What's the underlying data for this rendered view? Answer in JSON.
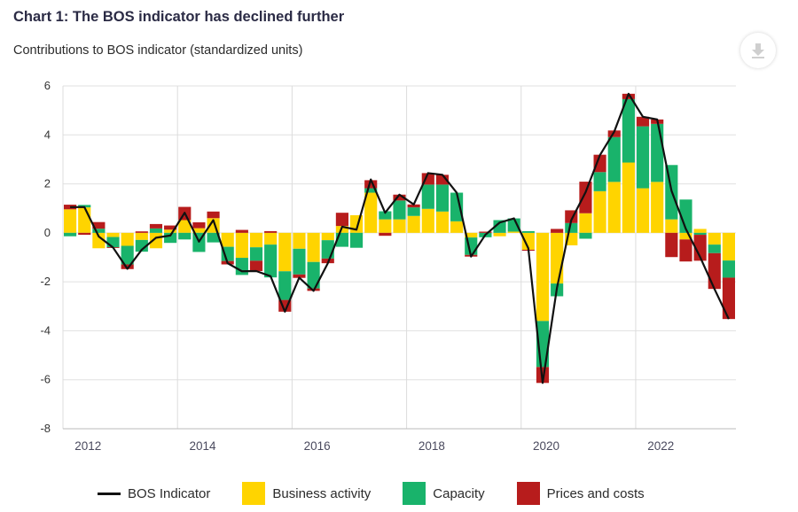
{
  "title": "Chart 1: The BOS indicator has declined further",
  "subtitle": "Contributions to BOS indicator (standardized units)",
  "download_icon": "download-icon",
  "chart_data": {
    "type": "bar",
    "stacked": true,
    "x_start": "2012Q1",
    "frequency": "quarterly",
    "x_ticks": [
      "2012",
      "2014",
      "2016",
      "2018",
      "2020",
      "2022"
    ],
    "y_ticks": [
      6,
      4,
      2,
      0,
      -2,
      -4,
      -6,
      -8
    ],
    "ylim": [
      -8,
      6
    ],
    "grid": true,
    "legend_position": "bottom",
    "colors": {
      "bos": "#111111",
      "business": "#FFD400",
      "capacity": "#19B36B",
      "prices": "#B71C1C"
    },
    "series": [
      {
        "name": "Business activity",
        "key": "business",
        "values": [
          0.96,
          1.04,
          -0.63,
          -0.17,
          -0.53,
          -0.29,
          -0.63,
          0.13,
          0.52,
          0.19,
          0.6,
          -0.57,
          -1.02,
          -0.59,
          -0.48,
          -1.57,
          -0.65,
          -1.19,
          -0.3,
          0.28,
          0.72,
          1.64,
          0.55,
          0.55,
          0.69,
          0.98,
          0.87,
          0.47,
          -0.19,
          0,
          -0.14,
          0.05,
          -0.69,
          -3.6,
          -2.07,
          -0.51,
          0.8,
          1.7,
          2.08,
          2.87,
          1.82,
          2.08,
          0.55,
          -0.27,
          0.16,
          -0.48,
          -1.13
        ]
      },
      {
        "name": "Capacity",
        "key": "capacity",
        "values": [
          -0.14,
          0.1,
          0.17,
          -0.42,
          -0.76,
          -0.48,
          0.18,
          -0.41,
          -0.27,
          -0.78,
          -0.39,
          -0.58,
          -0.7,
          -0.55,
          -1.34,
          -1.17,
          -1.05,
          -1.08,
          -0.75,
          -0.57,
          -0.61,
          0.18,
          0.33,
          0.77,
          0.35,
          0.99,
          1.1,
          1.17,
          -0.71,
          -0.18,
          0.52,
          0.54,
          0.07,
          -1.88,
          -0.52,
          0.4,
          -0.24,
          0.78,
          1.83,
          2.59,
          2.53,
          2.37,
          2.22,
          1.36,
          -0.08,
          -0.35,
          -0.7
        ]
      },
      {
        "name": "Prices and costs",
        "key": "prices",
        "values": [
          0.19,
          -0.08,
          0.27,
          -0.03,
          -0.19,
          0.06,
          0.18,
          0.17,
          0.54,
          0.24,
          0.27,
          -0.14,
          0.12,
          -0.42,
          0.07,
          -0.48,
          -0.14,
          -0.1,
          -0.19,
          0.54,
          0,
          0.33,
          -0.12,
          0.24,
          0.12,
          0.47,
          0.4,
          0,
          -0.07,
          0.05,
          0,
          0,
          -0.04,
          -0.65,
          0.16,
          0.52,
          1.29,
          0.71,
          0.27,
          0.22,
          0.39,
          0.18,
          -0.99,
          -0.9,
          -1.06,
          -1.46,
          -1.69
        ]
      },
      {
        "name": "BOS Indicator",
        "key": "bos",
        "type": "line",
        "values": [
          1.05,
          1.05,
          -0.15,
          -0.6,
          -1.47,
          -0.69,
          -0.2,
          -0.11,
          0.82,
          -0.36,
          0.52,
          -1.24,
          -1.57,
          -1.56,
          -1.77,
          -3.22,
          -1.83,
          -2.37,
          -1.24,
          0.25,
          0.13,
          2.18,
          0.82,
          1.56,
          1.16,
          2.44,
          2.37,
          1.64,
          -0.97,
          -0.08,
          0.42,
          0.59,
          -0.63,
          -6.13,
          -2.25,
          0.52,
          1.66,
          3.17,
          4.13,
          5.68,
          4.74,
          4.63,
          1.72,
          0.16,
          -0.99,
          -2.29,
          -3.52
        ]
      }
    ]
  },
  "legend": [
    {
      "label": "BOS Indicator",
      "key": "bos"
    },
    {
      "label": "Business activity",
      "key": "business"
    },
    {
      "label": "Capacity",
      "key": "capacity"
    },
    {
      "label": "Prices and costs",
      "key": "prices"
    }
  ]
}
